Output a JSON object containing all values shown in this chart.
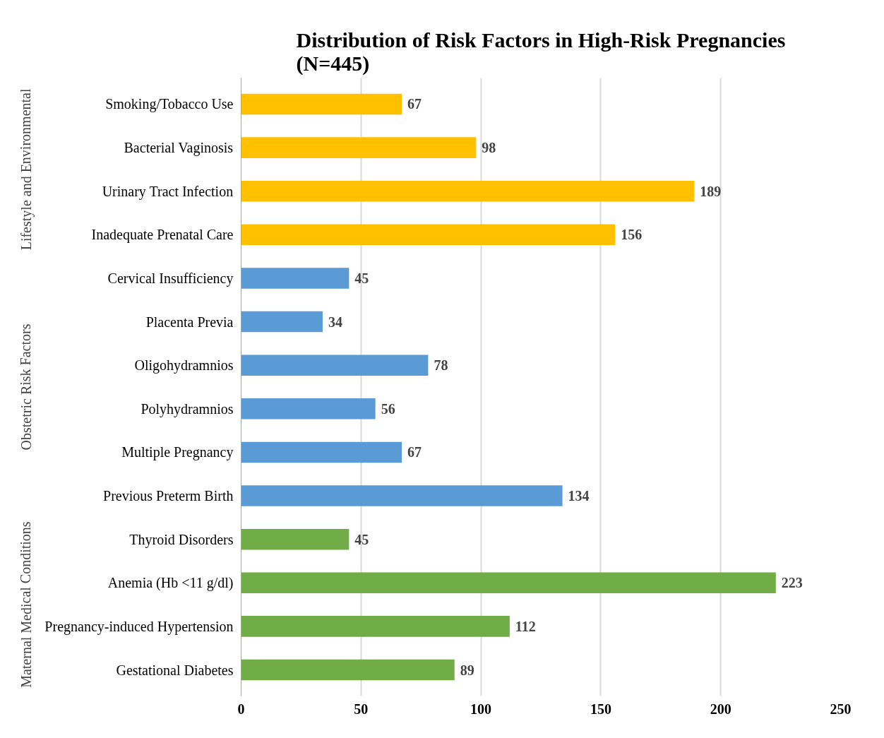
{
  "chart_data": {
    "type": "bar",
    "orientation": "horizontal",
    "title": "Distribution of Risk Factors in High-Risk Pregnancies\n(N=445)",
    "categories": [
      "Smoking/Tobacco Use",
      "Bacterial Vaginosis",
      "Urinary Tract Infection",
      "Inadequate Prenatal Care",
      "Cervical Insufficiency",
      "Placenta Previa",
      "Oligohydramnios",
      "Polyhydramnios",
      "Multiple Pregnancy",
      "Previous Preterm Birth",
      "Thyroid Disorders",
      "Anemia (Hb <11 g/dl)",
      "Pregnancy-induced Hypertension",
      "Gestational Diabetes"
    ],
    "values": [
      67,
      98,
      189,
      156,
      45,
      34,
      78,
      56,
      67,
      134,
      45,
      223,
      112,
      89
    ],
    "colors": [
      "#ffc000",
      "#ffc000",
      "#ffc000",
      "#ffc000",
      "#5b9bd5",
      "#5b9bd5",
      "#5b9bd5",
      "#5b9bd5",
      "#5b9bd5",
      "#5b9bd5",
      "#70ad47",
      "#70ad47",
      "#70ad47",
      "#70ad47"
    ],
    "annotations": [
      "Lifestyle and Environmental",
      "Obstetric Risk Factors",
      "Maternal Medical Conditions"
    ],
    "xlim": [
      0,
      250
    ],
    "xticks": [
      0,
      50,
      100,
      150,
      200,
      250
    ],
    "grid": "x",
    "data_labels": true
  }
}
